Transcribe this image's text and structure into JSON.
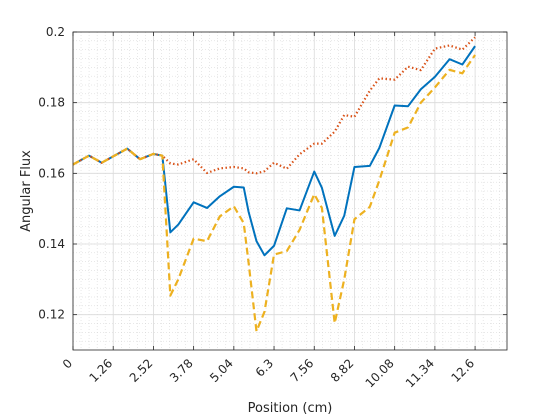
{
  "chart_data": {
    "type": "line",
    "title": "",
    "xlabel": "Position (cm)",
    "ylabel": "Angular Flux",
    "xlim": [
      0,
      13.6
    ],
    "ylim": [
      0.11,
      0.2
    ],
    "x_ticks": [
      0,
      1.26,
      2.52,
      3.78,
      5.04,
      6.3,
      7.56,
      8.82,
      10.08,
      11.34,
      12.6
    ],
    "x_tick_labels": [
      "0",
      "1.26",
      "2.52",
      "3.78",
      "5.04",
      "6.3",
      "7.56",
      "8.82",
      "10.08",
      "11.34",
      "12.6"
    ],
    "y_ticks": [
      0.12,
      0.14,
      0.16,
      0.18,
      0.2
    ],
    "y_tick_labels": [
      "0.12",
      "0.14",
      "0.16",
      "0.18",
      "0.2"
    ],
    "grid": true,
    "minor_grid": true,
    "legend": false,
    "series": [
      {
        "color": "#0072BD",
        "style": "solid",
        "x": [
          0,
          0.5,
          0.9,
          1.3,
          1.7,
          2.1,
          2.52,
          2.8,
          3.05,
          3.3,
          3.78,
          4.2,
          4.6,
          5.04,
          5.35,
          5.5,
          5.75,
          6.0,
          6.3,
          6.7,
          7.1,
          7.56,
          7.8,
          8.2,
          8.5,
          8.82,
          9.3,
          9.6,
          10.08,
          10.5,
          10.9,
          11.34,
          11.8,
          12.2,
          12.6
        ],
        "y": [
          0.1625,
          0.165,
          0.163,
          0.165,
          0.167,
          0.164,
          0.1655,
          0.165,
          0.1433,
          0.1455,
          0.1518,
          0.1502,
          0.1535,
          0.1562,
          0.156,
          0.1492,
          0.1408,
          0.1368,
          0.1395,
          0.1501,
          0.1495,
          0.1605,
          0.1559,
          0.1423,
          0.148,
          0.1618,
          0.1621,
          0.1672,
          0.1792,
          0.179,
          0.1838,
          0.1873,
          0.1923,
          0.1908,
          0.196
        ]
      },
      {
        "color": "#D95319",
        "style": "dotted",
        "x": [
          0,
          0.5,
          0.9,
          1.3,
          1.7,
          2.1,
          2.52,
          2.8,
          3.05,
          3.3,
          3.78,
          4.2,
          4.6,
          5.04,
          5.35,
          5.5,
          5.75,
          6.0,
          6.3,
          6.7,
          7.1,
          7.56,
          7.8,
          8.2,
          8.5,
          8.82,
          9.3,
          9.6,
          10.08,
          10.5,
          10.9,
          11.34,
          11.8,
          12.2,
          12.6
        ],
        "y": [
          0.1625,
          0.165,
          0.163,
          0.165,
          0.167,
          0.164,
          0.1655,
          0.165,
          0.1628,
          0.1625,
          0.164,
          0.1601,
          0.1614,
          0.1618,
          0.1614,
          0.1603,
          0.16,
          0.1606,
          0.163,
          0.1613,
          0.1654,
          0.1684,
          0.1684,
          0.1718,
          0.1765,
          0.176,
          0.1834,
          0.1869,
          0.1865,
          0.1902,
          0.1892,
          0.1953,
          0.1962,
          0.195,
          0.1985
        ]
      },
      {
        "color": "#EDB120",
        "style": "dashed",
        "x": [
          0,
          0.5,
          0.9,
          1.3,
          1.7,
          2.1,
          2.52,
          2.8,
          3.05,
          3.3,
          3.78,
          4.2,
          4.6,
          5.04,
          5.35,
          5.5,
          5.75,
          6.0,
          6.3,
          6.7,
          7.1,
          7.56,
          7.8,
          8.2,
          8.5,
          8.82,
          9.3,
          9.6,
          10.08,
          10.5,
          10.9,
          11.34,
          11.8,
          12.2,
          12.6
        ],
        "y": [
          0.1625,
          0.165,
          0.163,
          0.165,
          0.167,
          0.164,
          0.1655,
          0.165,
          0.1254,
          0.13,
          0.1415,
          0.1408,
          0.1478,
          0.1507,
          0.1459,
          0.1349,
          0.1153,
          0.1208,
          0.137,
          0.138,
          0.144,
          0.1541,
          0.1502,
          0.1176,
          0.13,
          0.147,
          0.1505,
          0.158,
          0.1715,
          0.173,
          0.18,
          0.1843,
          0.1893,
          0.1883,
          0.1935
        ]
      }
    ]
  }
}
